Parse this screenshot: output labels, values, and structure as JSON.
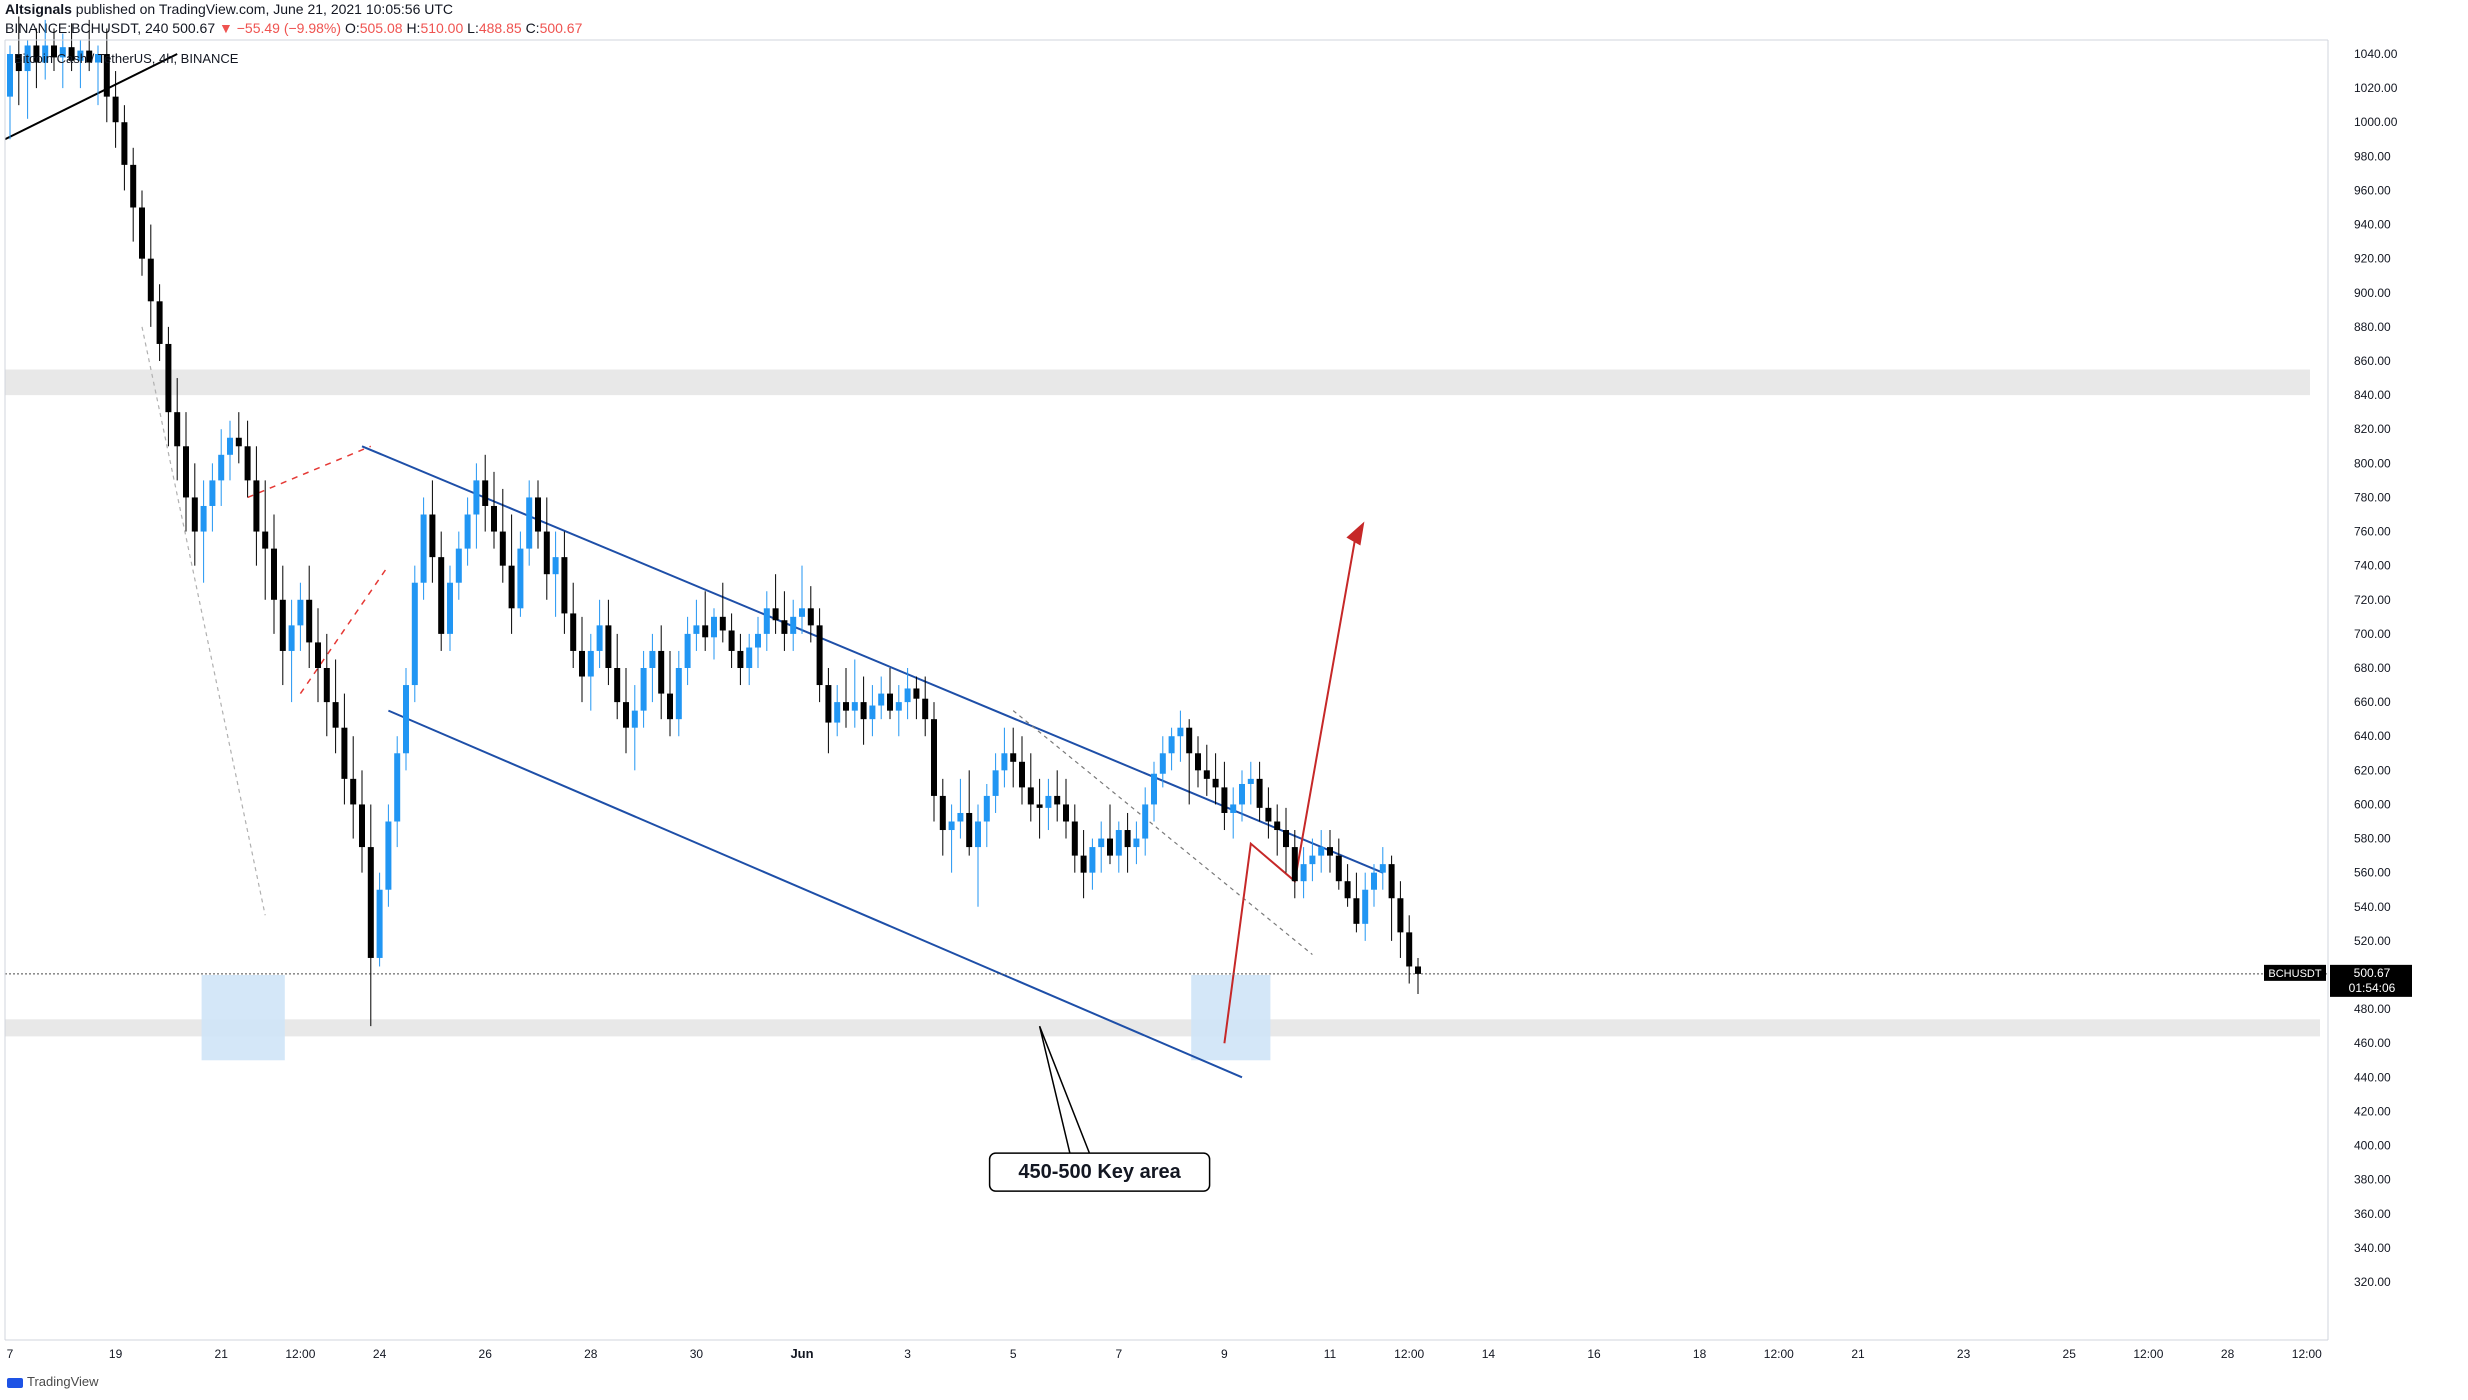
{
  "header": {
    "publisher": "Altsignals",
    "published_text": "published on TradingView.com, June 21, 2021 10:05:56 UTC",
    "symbol_line_prefix": "BINANCE:BCHUSDT, 240",
    "last": "500.67",
    "change": "▼ −55.49 (−9.98%)",
    "o_label": "O:",
    "o_value": "505.08",
    "h_label": "H:",
    "h_value": "510.00",
    "l_label": "L:",
    "l_value": "488.85",
    "c_label": "C:",
    "c_value": "500.67"
  },
  "footer": {
    "brand": "TradingView"
  },
  "chart_data": {
    "type": "candlestick",
    "title": "Bitcoin Cash / TetherUS, 4h, BINANCE",
    "symbol": "BCHUSDT",
    "price_badge": "500.67",
    "countdown": "01:54:06",
    "y_ticks": [
      1040,
      1020,
      1000,
      980,
      960,
      940,
      920,
      900,
      880,
      860,
      840,
      820,
      800,
      780,
      760,
      740,
      720,
      700,
      680,
      660,
      640,
      620,
      600,
      580,
      560,
      540,
      520,
      480,
      460,
      440,
      420,
      400,
      380,
      360,
      340,
      320
    ],
    "x_ticks": [
      {
        "label": "7",
        "i": 0
      },
      {
        "label": "19",
        "i": 12
      },
      {
        "label": "21",
        "i": 24
      },
      {
        "label": "12:00",
        "i": 33
      },
      {
        "label": "24",
        "i": 42
      },
      {
        "label": "26",
        "i": 54
      },
      {
        "label": "28",
        "i": 66
      },
      {
        "label": "30",
        "i": 78
      },
      {
        "label": "Jun",
        "i": 90
      },
      {
        "label": "3",
        "i": 102
      },
      {
        "label": "5",
        "i": 114
      },
      {
        "label": "7",
        "i": 126
      },
      {
        "label": "9",
        "i": 138
      },
      {
        "label": "11",
        "i": 150
      },
      {
        "label": "12:00",
        "i": 159
      },
      {
        "label": "14",
        "i": 168
      },
      {
        "label": "16",
        "i": 180
      },
      {
        "label": "18",
        "i": 192
      },
      {
        "label": "12:00",
        "i": 201
      },
      {
        "label": "21",
        "i": 210
      },
      {
        "label": "23",
        "i": 222
      },
      {
        "label": "25",
        "i": 234
      },
      {
        "label": "12:00",
        "i": 243
      },
      {
        "label": "28",
        "i": 252
      },
      {
        "label": "12:00",
        "i": 261
      }
    ],
    "candles": [
      [
        1015,
        1045,
        990,
        1040
      ],
      [
        1040,
        1062,
        1010,
        1030
      ],
      [
        1030,
        1048,
        1002,
        1045
      ],
      [
        1045,
        1055,
        1020,
        1035
      ],
      [
        1035,
        1060,
        1025,
        1045
      ],
      [
        1045,
        1055,
        1030,
        1038
      ],
      [
        1038,
        1052,
        1020,
        1044
      ],
      [
        1044,
        1058,
        1030,
        1036
      ],
      [
        1036,
        1048,
        1020,
        1042
      ],
      [
        1042,
        1060,
        1030,
        1035
      ],
      [
        1035,
        1045,
        1010,
        1040
      ],
      [
        1040,
        1055,
        1000,
        1015
      ],
      [
        1015,
        1030,
        985,
        1000
      ],
      [
        1000,
        1010,
        960,
        975
      ],
      [
        975,
        985,
        930,
        950
      ],
      [
        950,
        960,
        910,
        920
      ],
      [
        920,
        940,
        880,
        895
      ],
      [
        895,
        905,
        860,
        870
      ],
      [
        870,
        880,
        810,
        830
      ],
      [
        830,
        850,
        790,
        810
      ],
      [
        810,
        830,
        760,
        780
      ],
      [
        780,
        800,
        740,
        760
      ],
      [
        760,
        790,
        730,
        775
      ],
      [
        775,
        800,
        760,
        790
      ],
      [
        790,
        820,
        775,
        805
      ],
      [
        805,
        825,
        790,
        815
      ],
      [
        815,
        830,
        800,
        810
      ],
      [
        810,
        825,
        780,
        790
      ],
      [
        790,
        810,
        740,
        760
      ],
      [
        760,
        790,
        720,
        750
      ],
      [
        750,
        770,
        700,
        720
      ],
      [
        720,
        740,
        670,
        690
      ],
      [
        690,
        720,
        660,
        705
      ],
      [
        705,
        730,
        690,
        720
      ],
      [
        720,
        740,
        680,
        695
      ],
      [
        695,
        715,
        660,
        680
      ],
      [
        680,
        700,
        640,
        660
      ],
      [
        660,
        685,
        630,
        645
      ],
      [
        645,
        665,
        600,
        615
      ],
      [
        615,
        640,
        580,
        600
      ],
      [
        600,
        620,
        560,
        575
      ],
      [
        575,
        600,
        470,
        510
      ],
      [
        510,
        560,
        505,
        550
      ],
      [
        550,
        600,
        540,
        590
      ],
      [
        590,
        640,
        575,
        630
      ],
      [
        630,
        680,
        620,
        670
      ],
      [
        670,
        740,
        660,
        730
      ],
      [
        730,
        780,
        720,
        770
      ],
      [
        770,
        790,
        730,
        745
      ],
      [
        745,
        760,
        690,
        700
      ],
      [
        700,
        740,
        690,
        730
      ],
      [
        730,
        760,
        720,
        750
      ],
      [
        750,
        780,
        740,
        770
      ],
      [
        770,
        800,
        750,
        790
      ],
      [
        790,
        805,
        760,
        775
      ],
      [
        775,
        795,
        750,
        760
      ],
      [
        760,
        785,
        730,
        740
      ],
      [
        740,
        770,
        700,
        715
      ],
      [
        715,
        760,
        710,
        750
      ],
      [
        750,
        790,
        740,
        780
      ],
      [
        780,
        790,
        750,
        760
      ],
      [
        760,
        780,
        720,
        735
      ],
      [
        735,
        760,
        710,
        745
      ],
      [
        745,
        760,
        700,
        712
      ],
      [
        712,
        730,
        680,
        690
      ],
      [
        690,
        710,
        660,
        675
      ],
      [
        675,
        700,
        655,
        690
      ],
      [
        690,
        720,
        680,
        705
      ],
      [
        705,
        720,
        670,
        680
      ],
      [
        680,
        700,
        650,
        660
      ],
      [
        660,
        680,
        630,
        645
      ],
      [
        645,
        670,
        620,
        655
      ],
      [
        655,
        690,
        645,
        680
      ],
      [
        680,
        700,
        660,
        690
      ],
      [
        690,
        705,
        650,
        665
      ],
      [
        665,
        690,
        640,
        650
      ],
      [
        650,
        690,
        640,
        680
      ],
      [
        680,
        710,
        670,
        700
      ],
      [
        700,
        720,
        690,
        705
      ],
      [
        705,
        725,
        690,
        698
      ],
      [
        698,
        715,
        685,
        710
      ],
      [
        710,
        730,
        695,
        702
      ],
      [
        702,
        712,
        680,
        690
      ],
      [
        690,
        700,
        670,
        680
      ],
      [
        680,
        700,
        670,
        692
      ],
      [
        692,
        710,
        680,
        700
      ],
      [
        700,
        725,
        690,
        715
      ],
      [
        715,
        735,
        700,
        708
      ],
      [
        708,
        725,
        690,
        700
      ],
      [
        700,
        720,
        690,
        710
      ],
      [
        710,
        740,
        700,
        715
      ],
      [
        715,
        728,
        695,
        705
      ],
      [
        705,
        715,
        660,
        670
      ],
      [
        670,
        680,
        630,
        648
      ],
      [
        648,
        670,
        640,
        660
      ],
      [
        660,
        680,
        645,
        655
      ],
      [
        655,
        685,
        645,
        660
      ],
      [
        660,
        675,
        635,
        650
      ],
      [
        650,
        670,
        640,
        658
      ],
      [
        658,
        675,
        650,
        665
      ],
      [
        665,
        680,
        650,
        655
      ],
      [
        655,
        670,
        640,
        660
      ],
      [
        660,
        680,
        650,
        668
      ],
      [
        668,
        675,
        650,
        662
      ],
      [
        662,
        675,
        640,
        650
      ],
      [
        650,
        660,
        590,
        605
      ],
      [
        605,
        615,
        570,
        585
      ],
      [
        585,
        600,
        560,
        590
      ],
      [
        590,
        615,
        580,
        595
      ],
      [
        595,
        620,
        570,
        575
      ],
      [
        575,
        600,
        540,
        590
      ],
      [
        590,
        612,
        575,
        605
      ],
      [
        605,
        630,
        595,
        620
      ],
      [
        620,
        645,
        610,
        630
      ],
      [
        630,
        645,
        610,
        625
      ],
      [
        625,
        640,
        600,
        610
      ],
      [
        610,
        630,
        590,
        600
      ],
      [
        600,
        615,
        580,
        598
      ],
      [
        598,
        615,
        585,
        605
      ],
      [
        605,
        620,
        590,
        600
      ],
      [
        600,
        615,
        580,
        590
      ],
      [
        590,
        600,
        560,
        570
      ],
      [
        570,
        585,
        545,
        560
      ],
      [
        560,
        580,
        550,
        575
      ],
      [
        575,
        590,
        560,
        580
      ],
      [
        580,
        600,
        565,
        570
      ],
      [
        570,
        590,
        560,
        585
      ],
      [
        585,
        595,
        560,
        575
      ],
      [
        575,
        590,
        565,
        580
      ],
      [
        580,
        610,
        570,
        600
      ],
      [
        600,
        625,
        590,
        618
      ],
      [
        618,
        640,
        610,
        630
      ],
      [
        630,
        645,
        620,
        640
      ],
      [
        640,
        655,
        625,
        645
      ],
      [
        645,
        650,
        600,
        630
      ],
      [
        630,
        640,
        610,
        620
      ],
      [
        620,
        635,
        605,
        615
      ],
      [
        615,
        630,
        600,
        610
      ],
      [
        610,
        625,
        585,
        595
      ],
      [
        595,
        610,
        580,
        600
      ],
      [
        600,
        620,
        590,
        612
      ],
      [
        612,
        625,
        600,
        615
      ],
      [
        615,
        625,
        590,
        598
      ],
      [
        598,
        610,
        580,
        590
      ],
      [
        590,
        600,
        570,
        585
      ],
      [
        585,
        598,
        560,
        575
      ],
      [
        575,
        585,
        545,
        555
      ],
      [
        555,
        575,
        545,
        565
      ],
      [
        565,
        580,
        555,
        570
      ],
      [
        570,
        585,
        560,
        575
      ],
      [
        575,
        585,
        560,
        570
      ],
      [
        570,
        580,
        550,
        555
      ],
      [
        555,
        565,
        540,
        545
      ],
      [
        545,
        560,
        525,
        530
      ],
      [
        530,
        560,
        520,
        550
      ],
      [
        550,
        565,
        540,
        560
      ],
      [
        560,
        575,
        550,
        565
      ],
      [
        565,
        570,
        520,
        545
      ],
      [
        545,
        555,
        510,
        525
      ],
      [
        525,
        535,
        495,
        505
      ],
      [
        505,
        510,
        488.85,
        500.67
      ]
    ],
    "zones": [
      {
        "type": "resistance",
        "low": 840,
        "high": 855
      },
      {
        "type": "support",
        "low": 464,
        "high": 474
      }
    ],
    "annotations": [
      {
        "text": "450-500 Key area"
      }
    ]
  }
}
